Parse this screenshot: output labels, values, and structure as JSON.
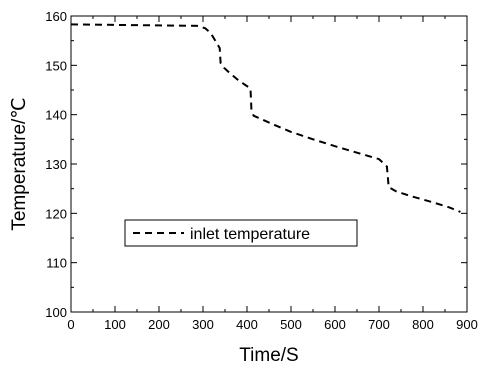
{
  "chart_data": {
    "type": "line",
    "title": "",
    "xlabel": "Time/S",
    "ylabel": "Temperature/℃",
    "xlim": [
      0,
      900
    ],
    "ylim": [
      100,
      160
    ],
    "xticks": [
      0,
      100,
      200,
      300,
      400,
      500,
      600,
      700,
      800,
      900
    ],
    "yticks": [
      100,
      110,
      120,
      130,
      140,
      150,
      160
    ],
    "grid": false,
    "legend_position": "left-middle",
    "series": [
      {
        "name": "inlet temperature",
        "line_style": "dashed",
        "color": "#000000",
        "points": [
          [
            0,
            158.3
          ],
          [
            100,
            158.2
          ],
          [
            200,
            158.1
          ],
          [
            290,
            158.0
          ],
          [
            305,
            157.5
          ],
          [
            318,
            156.5
          ],
          [
            328,
            155.0
          ],
          [
            338,
            153.5
          ],
          [
            340,
            150.5
          ],
          [
            348,
            149.5
          ],
          [
            360,
            148.5
          ],
          [
            380,
            147.0
          ],
          [
            408,
            145.3
          ],
          [
            410,
            141.0
          ],
          [
            415,
            139.8
          ],
          [
            430,
            139.2
          ],
          [
            460,
            138.0
          ],
          [
            500,
            136.5
          ],
          [
            550,
            135.0
          ],
          [
            600,
            133.6
          ],
          [
            650,
            132.3
          ],
          [
            700,
            131.0
          ],
          [
            718,
            129.5
          ],
          [
            722,
            125.3
          ],
          [
            740,
            124.4
          ],
          [
            780,
            123.3
          ],
          [
            820,
            122.3
          ],
          [
            860,
            121.2
          ],
          [
            885,
            120.3
          ]
        ]
      }
    ]
  }
}
